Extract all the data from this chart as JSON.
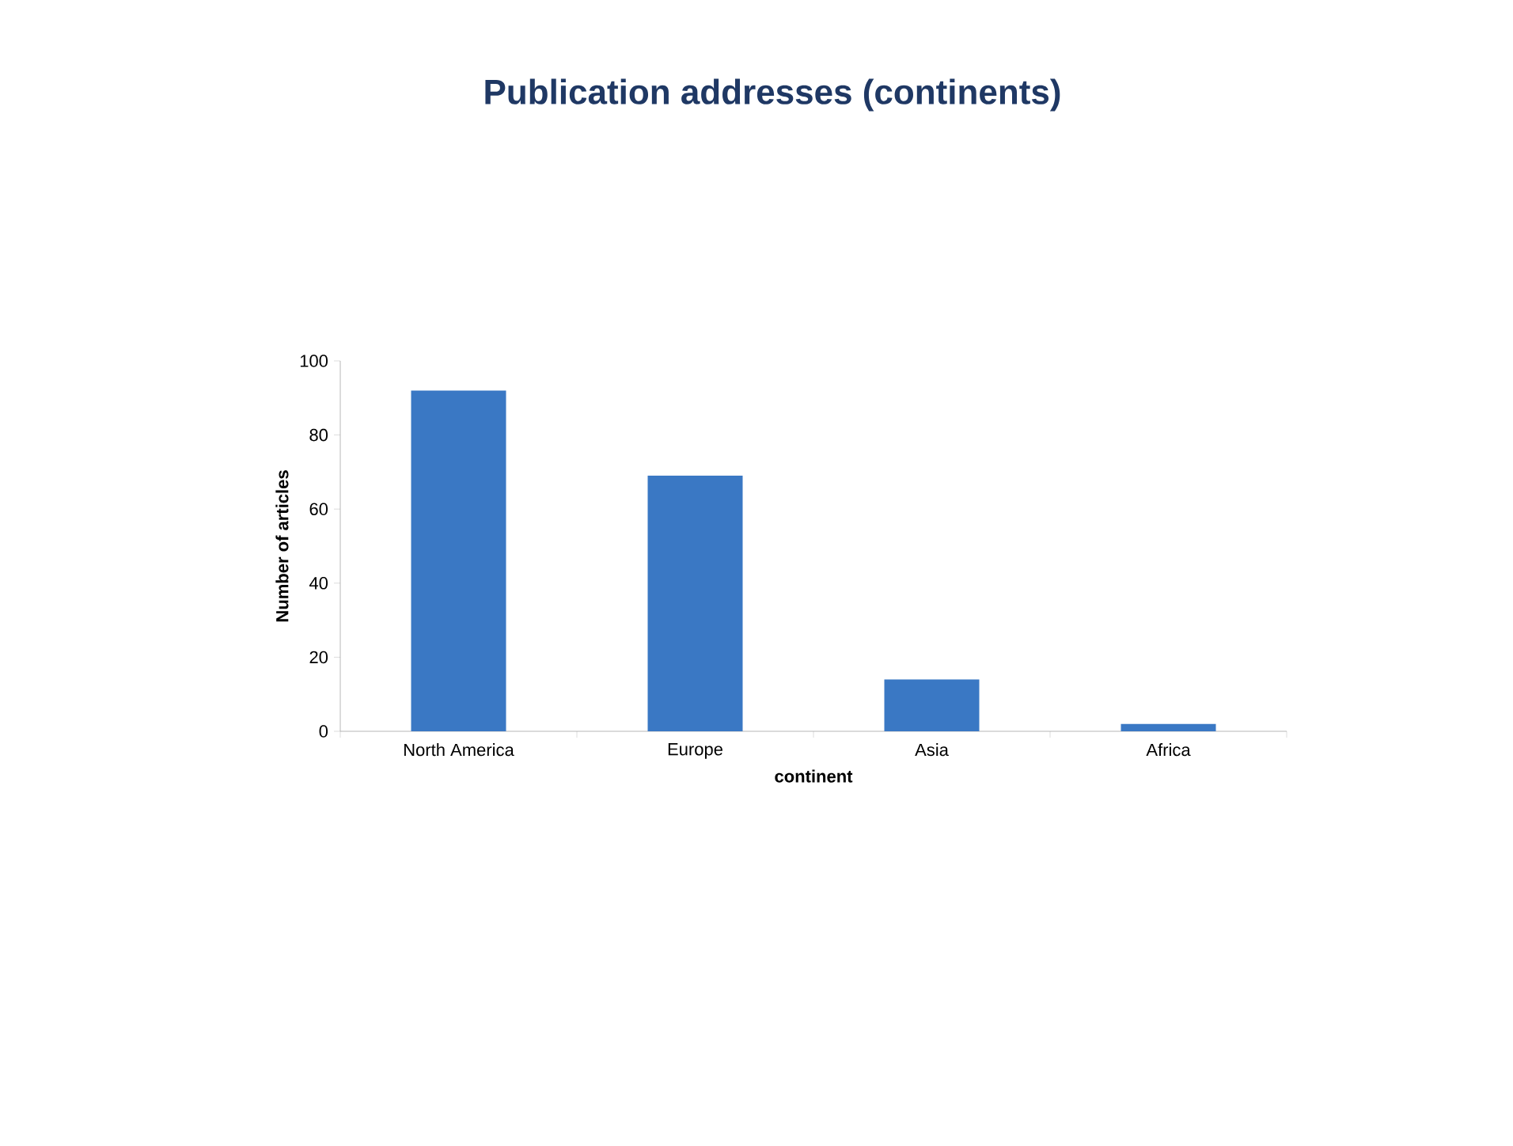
{
  "chart_data": {
    "type": "bar",
    "title": "Publication addresses (continents)",
    "xlabel": "continent",
    "ylabel": "Number of articles",
    "categories": [
      "North America",
      "Europe",
      "Asia",
      "Africa"
    ],
    "values": [
      92,
      69,
      14,
      2
    ],
    "color": "#3a78c4",
    "ylim": [
      0,
      100
    ],
    "yticks": [
      0,
      20,
      40,
      60,
      80,
      100
    ],
    "grid": false
  }
}
